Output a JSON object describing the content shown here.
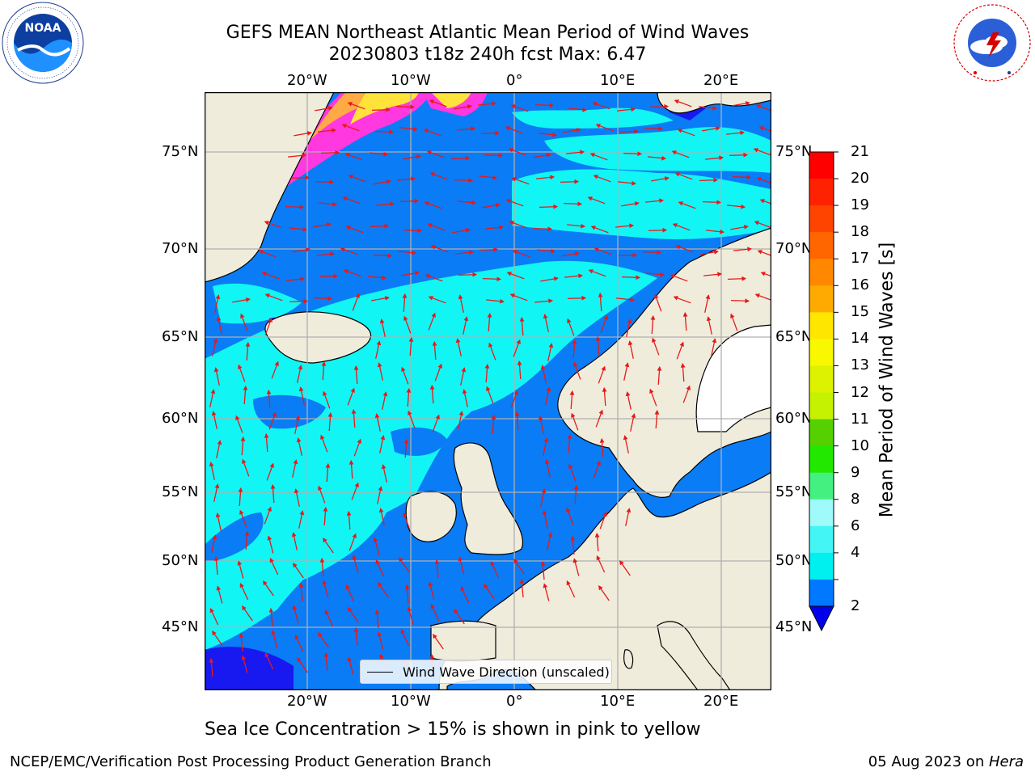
{
  "title": {
    "line1": "GEFS MEAN Northeast Atlantic Mean Period of Wind Waves",
    "line2": "20230803 t18z 240h fcst   Max: 6.47"
  },
  "logos": {
    "left": {
      "icon": "noaa-logo",
      "text": "NOAA"
    },
    "right": {
      "icon": "nws-logo",
      "text": "NATIONAL WEATHER SERVICE"
    }
  },
  "map": {
    "lon_ticks": [
      "20°W",
      "10°W",
      "0°",
      "10°E",
      "20°E"
    ],
    "lat_ticks": [
      "75°N",
      "70°N",
      "65°N",
      "60°N",
      "55°N",
      "50°N",
      "45°N"
    ],
    "legend_label": "Wind Wave Direction (unscaled)",
    "colors": {
      "land": "#efecdc",
      "ocean_low": "#0a7cf5",
      "ocean_mid": "#12f5f5",
      "ocean_light": "#9efafa",
      "deep_blue": "#1818f0",
      "ice_pink": "#ff38e0",
      "ice_orange": "#ffaa44",
      "ice_yellow": "#ffe23a",
      "arrow": "#e81818",
      "grid": "#b0b0b0"
    }
  },
  "colorbar": {
    "title": "Mean Period of Wind Waves [s]",
    "labels": [
      "21",
      "20",
      "19",
      "18",
      "17",
      "16",
      "15",
      "14",
      "13",
      "12",
      "11",
      "10",
      "9",
      "8",
      "6",
      "4",
      "2"
    ],
    "colors": [
      "#ff0000",
      "#ff2200",
      "#ff4400",
      "#ff6600",
      "#ff8800",
      "#ffaa00",
      "#ffe600",
      "#f8f800",
      "#ddf200",
      "#c4f200",
      "#55d000",
      "#22e800",
      "#44f080",
      "#9ffafa",
      "#44f5f5",
      "#00f0f0",
      "#0078ff"
    ],
    "extend_color": "#0000ee"
  },
  "subnote": "Sea Ice Concentration > 15% is shown in pink to yellow",
  "footer": {
    "left": "NCEP/EMC/Verification Post Processing Product Generation Branch",
    "right_prefix": "05 Aug 2023 on ",
    "right_host": "Hera"
  }
}
